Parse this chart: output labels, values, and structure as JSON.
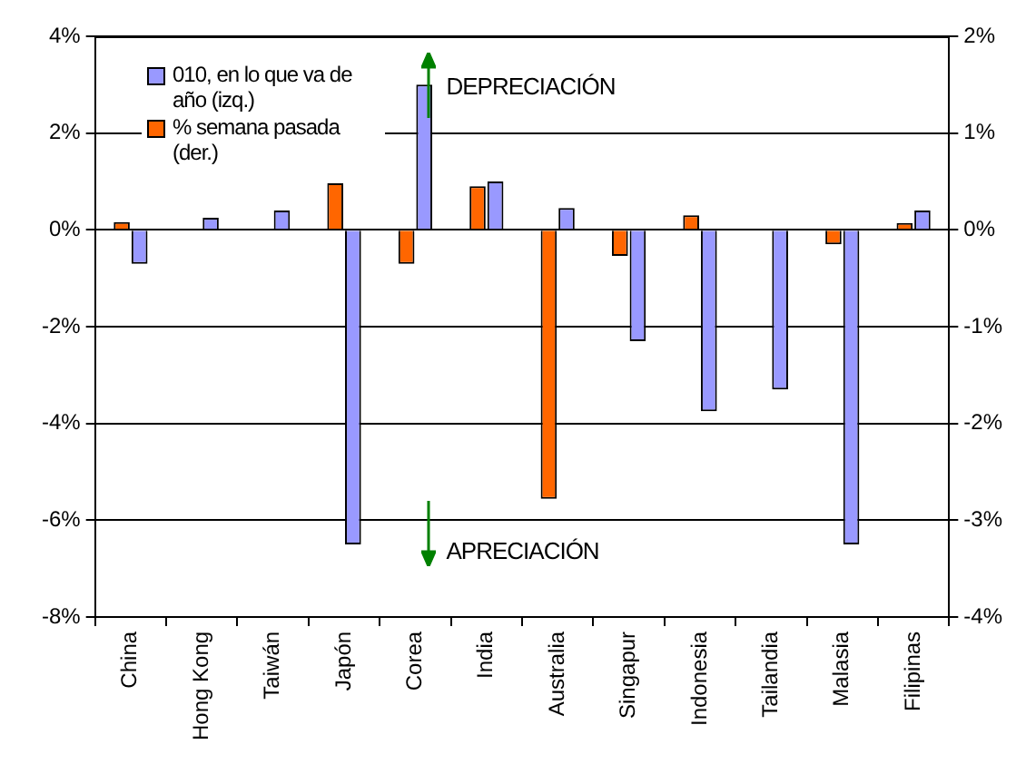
{
  "chart_data": {
    "type": "bar",
    "categories": [
      "China",
      "Hong Kong",
      "Taiwán",
      "Japón",
      "Corea",
      "India",
      "Australia",
      "Singapur",
      "Indonesia",
      "Tailandia",
      "Malasia",
      "Filipinas"
    ],
    "series": [
      {
        "name": "010, en lo que va de año (izq.)",
        "color": "#9999ff",
        "values": [
          -0.7,
          0.25,
          0.4,
          -6.5,
          3.0,
          1.0,
          0.45,
          -2.3,
          -3.75,
          -3.3,
          -6.5,
          0.4
        ]
      },
      {
        "name": "% semana pasada (der.)",
        "color": "#ff6600",
        "axis": "y2",
        "values": [
          0.08,
          0,
          null,
          0.48,
          -0.35,
          0.45,
          -2.78,
          -0.27,
          0.15,
          null,
          -0.15,
          0.07
        ]
      }
    ],
    "ylim": [
      -8,
      4
    ],
    "yticks": [
      {
        "value": -8,
        "label": "-8%"
      },
      {
        "value": -6,
        "label": "-6%"
      },
      {
        "value": -4,
        "label": "-4%"
      },
      {
        "value": -2,
        "label": "-2%"
      },
      {
        "value": 0,
        "label": "0%"
      },
      {
        "value": 2,
        "label": "2%"
      },
      {
        "value": 4,
        "label": "4%"
      }
    ],
    "y2lim": [
      -4,
      2
    ],
    "y2ticks": [
      {
        "value": -4,
        "label": "-4%"
      },
      {
        "value": -3,
        "label": "-3%"
      },
      {
        "value": -2,
        "label": "-2%"
      },
      {
        "value": -1,
        "label": "-1%"
      },
      {
        "value": 0,
        "label": "0%"
      },
      {
        "value": 1,
        "label": "1%"
      },
      {
        "value": 2,
        "label": "2%"
      }
    ],
    "grid": "y",
    "legend": "top left",
    "annotations": [
      "DEPRECIACIÓN",
      "APRECIACIÓN"
    ]
  }
}
